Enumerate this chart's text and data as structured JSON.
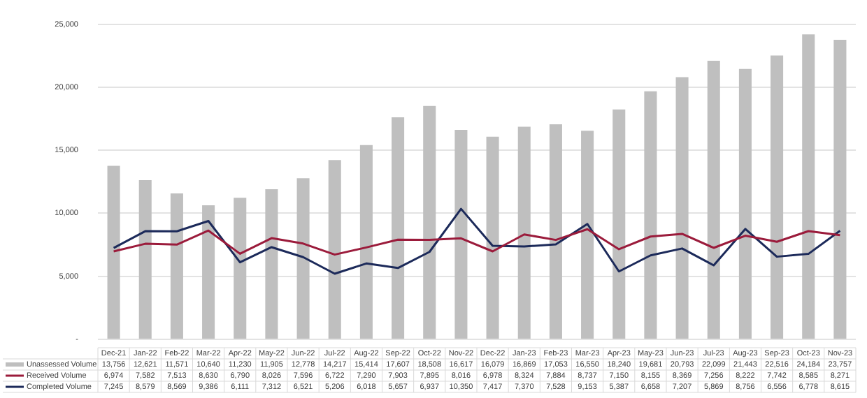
{
  "chart_data": {
    "type": "bar",
    "categories": [
      "Dec-21",
      "Jan-22",
      "Feb-22",
      "Mar-22",
      "Apr-22",
      "May-22",
      "Jun-22",
      "Jul-22",
      "Aug-22",
      "Sep-22",
      "Oct-22",
      "Nov-22",
      "Dec-22",
      "Jan-23",
      "Feb-23",
      "Mar-23",
      "Apr-23",
      "May-23",
      "Jun-23",
      "Jul-23",
      "Aug-23",
      "Sep-23",
      "Oct-23",
      "Nov-23"
    ],
    "series": [
      {
        "name": "Unassessed Volume",
        "color": "#bfbfbf",
        "values": [
          13756,
          12621,
          11571,
          10640,
          11230,
          11905,
          12778,
          14217,
          15414,
          17607,
          18508,
          16617,
          16079,
          16869,
          17053,
          16550,
          18240,
          19681,
          20793,
          22099,
          21443,
          22516,
          24184,
          23757
        ],
        "value_labels": [
          "13,756",
          "12,621",
          "11,571",
          "10,640",
          "11,230",
          "11,905",
          "12,778",
          "14,217",
          "15,414",
          "17,607",
          "18,508",
          "16,617",
          "16,079",
          "16,869",
          "17,053",
          "16,550",
          "18,240",
          "19,681",
          "20,793",
          "22,099",
          "21,443",
          "22,516",
          "24,184",
          "23,757"
        ]
      },
      {
        "name": "Received Volume",
        "type": "line",
        "color": "#9b1b3b",
        "values": [
          6974,
          7582,
          7513,
          8630,
          6790,
          8026,
          7596,
          6722,
          7290,
          7903,
          7895,
          8016,
          6978,
          8324,
          7884,
          8737,
          7150,
          8155,
          8369,
          7256,
          8222,
          7742,
          8585,
          8271
        ],
        "value_labels": [
          "6,974",
          "7,582",
          "7,513",
          "8,630",
          "6,790",
          "8,026",
          "7,596",
          "6,722",
          "7,290",
          "7,903",
          "7,895",
          "8,016",
          "6,978",
          "8,324",
          "7,884",
          "8,737",
          "7,150",
          "8,155",
          "8,369",
          "7,256",
          "8,222",
          "7,742",
          "8,585",
          "8,271"
        ]
      },
      {
        "name": "Completed Volume",
        "type": "line",
        "color": "#1c2a5a",
        "values": [
          7245,
          8579,
          8569,
          9386,
          6111,
          7312,
          6521,
          5206,
          6018,
          5657,
          6937,
          10350,
          7417,
          7370,
          7528,
          9153,
          5387,
          6658,
          7207,
          5869,
          8756,
          6556,
          6778,
          8615
        ],
        "value_labels": [
          "7,245",
          "8,579",
          "8,569",
          "9,386",
          "6,111",
          "7,312",
          "6,521",
          "5,206",
          "6,018",
          "5,657",
          "6,937",
          "10,350",
          "7,417",
          "7,370",
          "7,528",
          "9,153",
          "5,387",
          "6,658",
          "7,207",
          "5,869",
          "8,756",
          "6,556",
          "6,778",
          "8,615"
        ]
      }
    ],
    "ylim": [
      0,
      25000
    ],
    "yticks": [
      {
        "value": 0,
        "label": "-"
      },
      {
        "value": 5000,
        "label": "5,000"
      },
      {
        "value": 10000,
        "label": "10,000"
      },
      {
        "value": 15000,
        "label": "15,000"
      },
      {
        "value": 20000,
        "label": "20,000"
      },
      {
        "value": 25000,
        "label": "25,000"
      }
    ],
    "grid": "y",
    "legend": "bottom",
    "marker": "none"
  }
}
